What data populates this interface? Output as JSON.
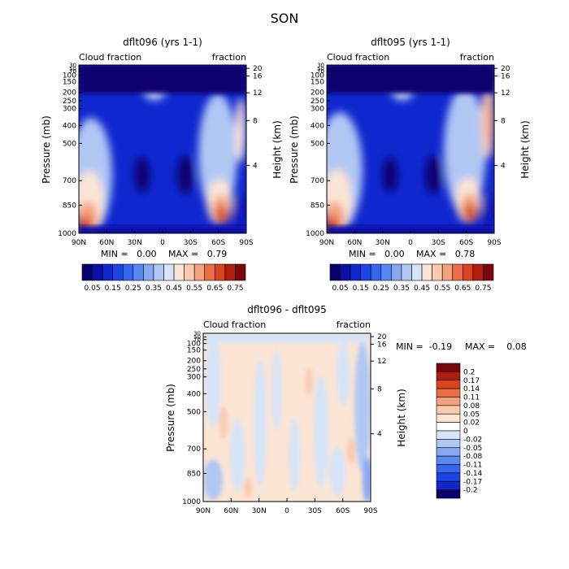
{
  "figure": {
    "title": "SON"
  },
  "chart_data": [
    {
      "type": "heatmap",
      "title": "dflt096 (yrs 1-1)",
      "left_label": "Cloud fraction",
      "right_label": "fraction",
      "ylabel": "Pressure (mb)",
      "ylabel_right": "Height (km)",
      "x_ticks": [
        "90N",
        "60N",
        "30N",
        "0",
        "30S",
        "60S",
        "90S"
      ],
      "y_ticks": [
        "30",
        "50",
        "70",
        "100",
        "150",
        "200",
        "250",
        "300",
        "400",
        "500",
        "700",
        "850",
        "1000"
      ],
      "y_ticks_right": [
        "20",
        "16",
        "12",
        "8",
        "4"
      ],
      "min_text": "MIN =   0.00",
      "max_text": "MAX =   0.79",
      "colorbar_labels": [
        "0.05",
        "0.15",
        "0.25",
        "0.35",
        "0.45",
        "0.55",
        "0.65",
        "0.75"
      ]
    },
    {
      "type": "heatmap",
      "title": "dflt095 (yrs 1-1)",
      "left_label": "Cloud fraction",
      "right_label": "fraction",
      "ylabel": "Pressure (mb)",
      "ylabel_right": "Height (km)",
      "x_ticks": [
        "90N",
        "60N",
        "30N",
        "0",
        "30S",
        "60S",
        "90S"
      ],
      "y_ticks": [
        "30",
        "50",
        "70",
        "100",
        "150",
        "200",
        "250",
        "300",
        "400",
        "500",
        "700",
        "850",
        "1000"
      ],
      "y_ticks_right": [
        "20",
        "16",
        "12",
        "8",
        "4"
      ],
      "min_text": "MIN =   0.00",
      "max_text": "MAX =   0.78",
      "colorbar_labels": [
        "0.05",
        "0.15",
        "0.25",
        "0.35",
        "0.45",
        "0.55",
        "0.65",
        "0.75"
      ]
    },
    {
      "type": "heatmap",
      "title": "dflt096 - dflt095",
      "left_label": "Cloud fraction",
      "right_label": "fraction",
      "ylabel": "Pressure (mb)",
      "ylabel_right": "Height (km)",
      "x_ticks": [
        "90N",
        "60N",
        "30N",
        "0",
        "30S",
        "60S",
        "90S"
      ],
      "y_ticks": [
        "30",
        "50",
        "70",
        "100",
        "150",
        "200",
        "250",
        "300",
        "400",
        "500",
        "700",
        "850",
        "1000"
      ],
      "y_ticks_right": [
        "20",
        "16",
        "12",
        "8",
        "4"
      ],
      "min_text": "MIN =  -0.19",
      "max_text": "MAX =    0.08",
      "colorbar_labels": [
        "0.2",
        "0.17",
        "0.14",
        "0.11",
        "0.08",
        "0.05",
        "0.02",
        "0",
        "-0.02",
        "-0.05",
        "-0.08",
        "-0.11",
        "-0.14",
        "-0.17",
        "-0.2"
      ]
    }
  ],
  "colors": {
    "abs_scale": [
      "#08006e",
      "#0a10a6",
      "#0f27cf",
      "#1a45e3",
      "#3366ee",
      "#5a88f2",
      "#86a8f3",
      "#b0c7f4",
      "#d6e4f8",
      "#fce5d4",
      "#f9c9ae",
      "#f4a17d",
      "#ec6c44",
      "#d8441f",
      "#b01c10",
      "#7a0808"
    ],
    "diff_scale": [
      "#7a0808",
      "#b01c10",
      "#d8441f",
      "#ec6c44",
      "#f4a17d",
      "#f9c9ae",
      "#fce5d4",
      "#ffffff",
      "#d6e4f8",
      "#b0c7f4",
      "#86a8f3",
      "#5a88f2",
      "#3366ee",
      "#1a45e3",
      "#0f27cf",
      "#08006e"
    ]
  }
}
